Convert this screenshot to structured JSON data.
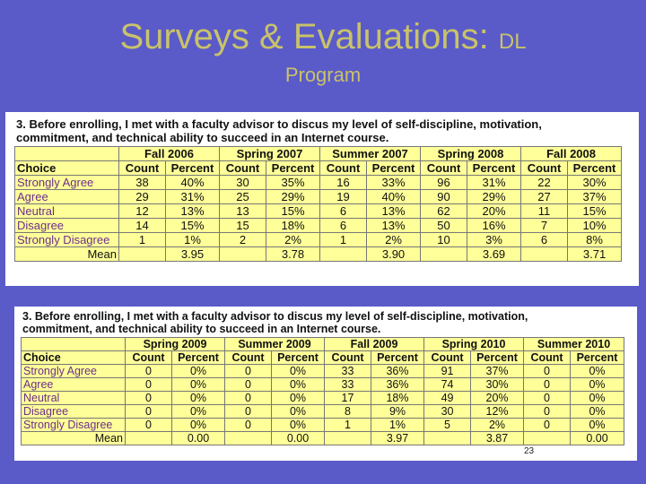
{
  "slide": {
    "title_main": "Surveys & Evaluations: ",
    "title_small": "DL",
    "subtitle": "Program",
    "page_number": "23"
  },
  "panels": [
    {
      "question": "3. Before enrolling, I met with a faculty advisor to discus my level of self-discipline, motivation,\ncommitment, and technical ability to succeed in an Internet course.",
      "terms": [
        "Fall 2006",
        "Spring 2007",
        "Summer 2007",
        "Spring 2008",
        "Fall 2008"
      ],
      "header": [
        "Choice",
        "Count",
        "Percent",
        "Count",
        "Percent",
        "Count",
        "Percent",
        "Count",
        "Percent",
        "Count",
        "Percent"
      ],
      "rows": [
        [
          "Strongly Agree",
          "38",
          "40%",
          "30",
          "35%",
          "16",
          "33%",
          "96",
          "31%",
          "22",
          "30%"
        ],
        [
          "Agree",
          "29",
          "31%",
          "25",
          "29%",
          "19",
          "40%",
          "90",
          "29%",
          "27",
          "37%"
        ],
        [
          "Neutral",
          "12",
          "13%",
          "13",
          "15%",
          "6",
          "13%",
          "62",
          "20%",
          "11",
          "15%"
        ],
        [
          "Disagree",
          "14",
          "15%",
          "15",
          "18%",
          "6",
          "13%",
          "50",
          "16%",
          "7",
          "10%"
        ],
        [
          "Strongly Disagree",
          "1",
          "1%",
          "2",
          "2%",
          "1",
          "2%",
          "10",
          "3%",
          "6",
          "8%"
        ]
      ],
      "mean_label": "Mean",
      "means": [
        "3.95",
        "3.78",
        "3.90",
        "3.69",
        "3.71"
      ]
    },
    {
      "question": "3. Before enrolling, I met with a faculty advisor to discus my level of self-discipline, motivation,\ncommitment, and technical ability to succeed in an Internet course.",
      "terms": [
        "Spring 2009",
        "Summer 2009",
        "Fall 2009",
        "Spring 2010",
        "Summer 2010"
      ],
      "header": [
        "Choice",
        "Count",
        "Percent",
        "Count",
        "Percent",
        "Count",
        "Percent",
        "Count",
        "Percent",
        "Count",
        "Percent"
      ],
      "rows": [
        [
          "Strongly Agree",
          "0",
          "0%",
          "0",
          "0%",
          "33",
          "36%",
          "91",
          "37%",
          "0",
          "0%"
        ],
        [
          "Agree",
          "0",
          "0%",
          "0",
          "0%",
          "33",
          "36%",
          "74",
          "30%",
          "0",
          "0%"
        ],
        [
          "Neutral",
          "0",
          "0%",
          "0",
          "0%",
          "17",
          "18%",
          "49",
          "20%",
          "0",
          "0%"
        ],
        [
          "Disagree",
          "0",
          "0%",
          "0",
          "0%",
          "8",
          "9%",
          "30",
          "12%",
          "0",
          "0%"
        ],
        [
          "Strongly Disagree",
          "0",
          "0%",
          "0",
          "0%",
          "1",
          "1%",
          "5",
          "2%",
          "0",
          "0%"
        ]
      ],
      "mean_label": "Mean",
      "means": [
        "0.00",
        "0.00",
        "3.97",
        "3.87",
        "0.00"
      ]
    }
  ]
}
